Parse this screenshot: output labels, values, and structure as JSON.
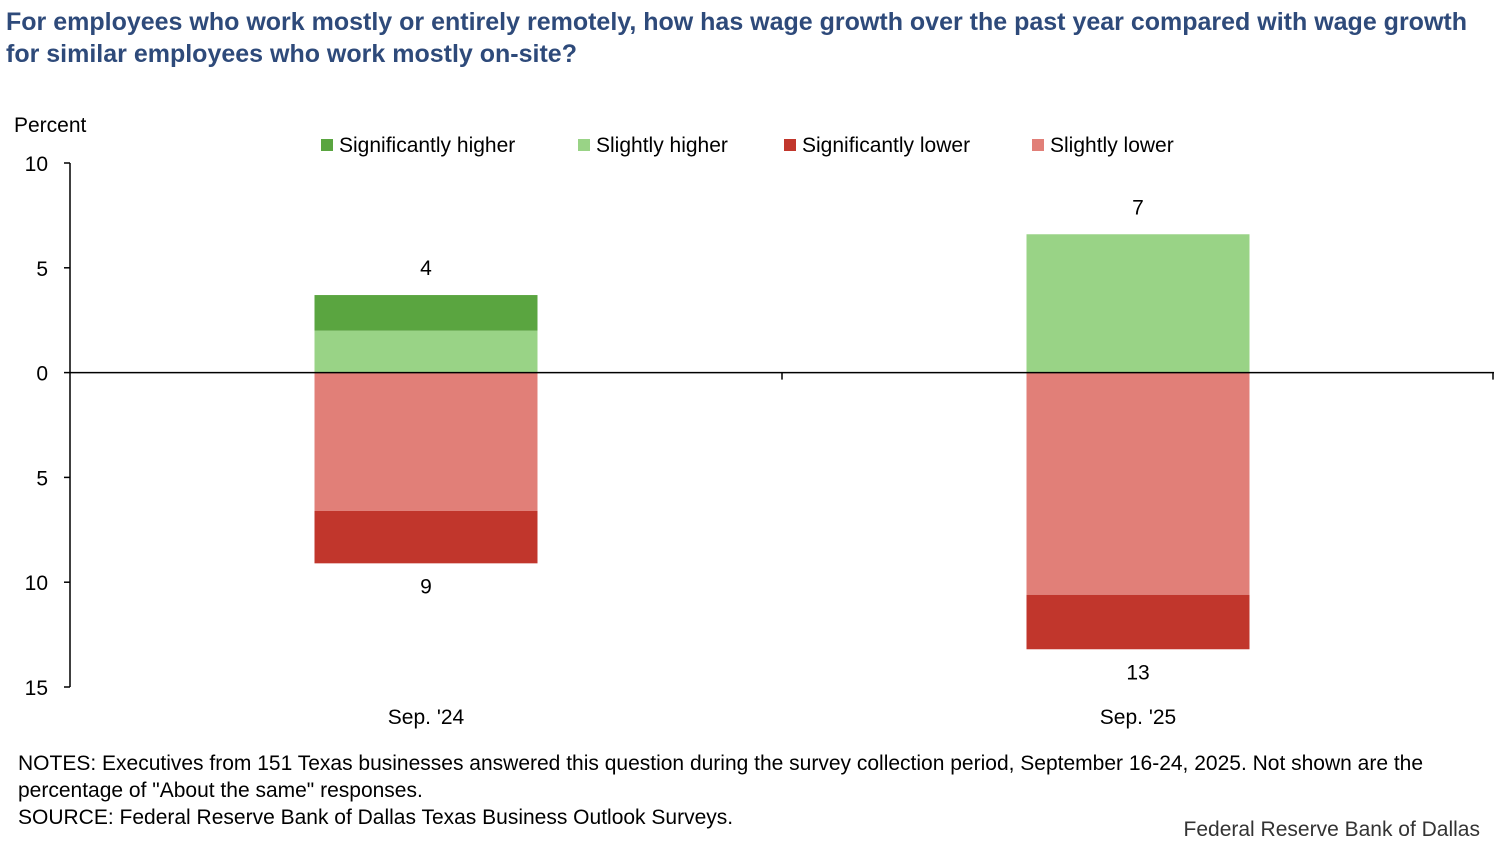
{
  "title": "For employees who work mostly or entirely remotely, how has wage growth over the past year compared with wage growth for similar employees who work mostly on-site?",
  "notes_line1": "NOTES: Executives from 151 Texas businesses answered this question during the survey collection period, September 16-24, 2025. Not shown are the percentage of \"About the same\" responses.",
  "source": "SOURCE: Federal Reserve Bank of Dallas Texas Business Outlook Surveys.",
  "brand": "Federal Reserve Bank of Dallas",
  "chart_data": {
    "type": "bar",
    "stacked": true,
    "ylabel": "Percent",
    "ylim": [
      -15,
      10
    ],
    "ytick_values": [
      10,
      5,
      0,
      -5,
      -10,
      -15
    ],
    "ytick_labels": [
      "10",
      "5",
      "0",
      "5",
      "10",
      "15"
    ],
    "categories": [
      "Sep. '24",
      "Sep. '25"
    ],
    "legend_position": "top",
    "series": [
      {
        "name": "Significantly higher",
        "color": "#5aa540",
        "values": [
          1.7,
          0
        ]
      },
      {
        "name": "Slightly higher",
        "color": "#99d386",
        "values": [
          2.0,
          6.6
        ]
      },
      {
        "name": "Significantly lower",
        "color": "#c1362c",
        "values": [
          -2.5,
          -2.6
        ]
      },
      {
        "name": "Slightly lower",
        "color": "#e17f78",
        "values": [
          -6.6,
          -10.6
        ]
      }
    ],
    "stack_order_positive": [
      1,
      0
    ],
    "stack_order_negative": [
      3,
      2
    ],
    "total_labels_top": [
      "4",
      "7"
    ],
    "total_labels_bottom": [
      "9",
      "13"
    ]
  }
}
